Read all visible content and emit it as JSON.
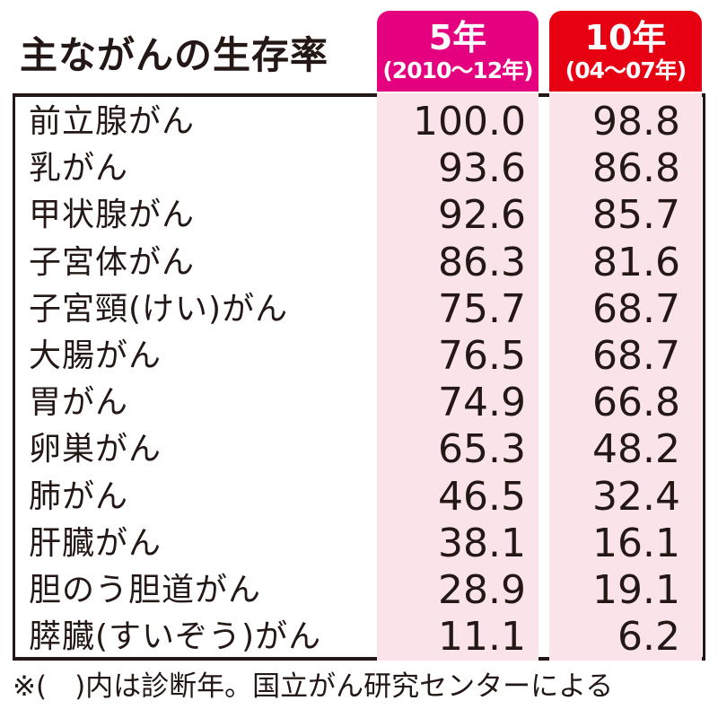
{
  "title": "主ながんの生存率",
  "columns": [
    {
      "main": "5年",
      "sub": "(2010〜12年)"
    },
    {
      "main": "10年",
      "sub": "(04〜07年)"
    }
  ],
  "rows": [
    {
      "name": "前立腺がん",
      "v5": "100.0",
      "v10": "98.8"
    },
    {
      "name": "乳がん",
      "v5": "93.6",
      "v10": "86.8"
    },
    {
      "name": "甲状腺がん",
      "v5": "92.6",
      "v10": "85.7"
    },
    {
      "name": "子宮体がん",
      "v5": "86.3",
      "v10": "81.6"
    },
    {
      "name": "子宮頸(けい)がん",
      "v5": "75.7",
      "v10": "68.7"
    },
    {
      "name": "大腸がん",
      "v5": "76.5",
      "v10": "68.7"
    },
    {
      "name": "胃がん",
      "v5": "74.9",
      "v10": "66.8"
    },
    {
      "name": "卵巣がん",
      "v5": "65.3",
      "v10": "48.2"
    },
    {
      "name": "肺がん",
      "v5": "46.5",
      "v10": "32.4"
    },
    {
      "name": "肝臓がん",
      "v5": "38.1",
      "v10": "16.1"
    },
    {
      "name": "胆のう胆道がん",
      "v5": "28.9",
      "v10": "19.1"
    },
    {
      "name": "膵臓(すいぞう)がん",
      "v5": "11.1",
      "v10": "6.2"
    }
  ],
  "note": "※(　)内は診断年。国立がん研究センターによる",
  "colors": {
    "col5_header": "#e4007f",
    "col10_header": "#e60012",
    "column_fill": "#fbe3ea",
    "text": "#231815"
  },
  "chart_data": {
    "type": "table",
    "title": "主ながんの生存率",
    "categories": [
      "前立腺がん",
      "乳がん",
      "甲状腺がん",
      "子宮体がん",
      "子宮頸(けい)がん",
      "大腸がん",
      "胃がん",
      "卵巣がん",
      "肺がん",
      "肝臓がん",
      "胆のう胆道がん",
      "膵臓(すいぞう)がん"
    ],
    "series": [
      {
        "name": "5年(2010〜12年)",
        "values": [
          100.0,
          93.6,
          92.6,
          86.3,
          75.7,
          76.5,
          74.9,
          65.3,
          46.5,
          38.1,
          28.9,
          11.1
        ]
      },
      {
        "name": "10年(04〜07年)",
        "values": [
          98.8,
          86.8,
          85.7,
          81.6,
          68.7,
          68.7,
          66.8,
          48.2,
          32.4,
          16.1,
          19.1,
          6.2
        ]
      }
    ]
  }
}
